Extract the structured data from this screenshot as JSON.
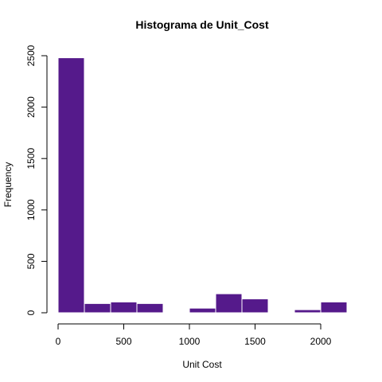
{
  "chart_data": {
    "type": "bar",
    "title": "Histograma de Unit_Cost",
    "xlabel": "Unit Cost",
    "ylabel": "Frequency",
    "bin_edges": [
      0,
      200,
      400,
      600,
      800,
      1000,
      1200,
      1400,
      1600,
      1800,
      2000,
      2200
    ],
    "values": [
      2480,
      90,
      105,
      90,
      0,
      45,
      185,
      135,
      0,
      30,
      105
    ],
    "xlim": [
      0,
      2200
    ],
    "ylim": [
      0,
      2500
    ],
    "x_ticks": [
      0,
      500,
      1000,
      1500,
      2000
    ],
    "y_ticks": [
      0,
      500,
      1000,
      1500,
      2000,
      2500
    ],
    "x_tick_labels": [
      "0",
      "500",
      "1000",
      "1500",
      "2000"
    ],
    "y_tick_labels": [
      "0",
      "500",
      "1000",
      "1500",
      "2000",
      "2500"
    ],
    "grid": false,
    "legend": "none",
    "bar_color": "#551A8B",
    "bar_border_color": "#ffffff"
  }
}
